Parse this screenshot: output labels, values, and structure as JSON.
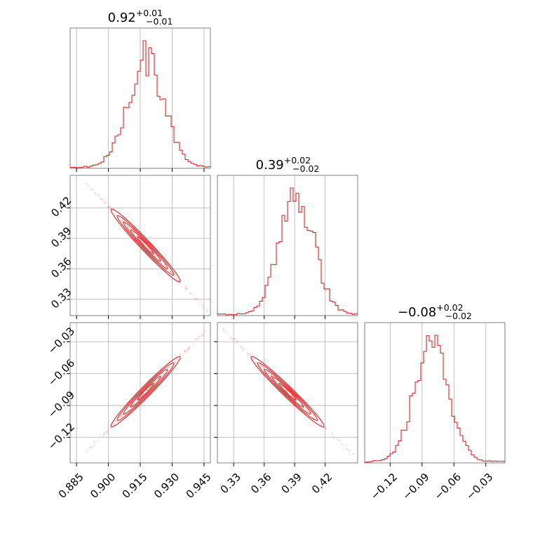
{
  "chart_data": {
    "type": "corner",
    "color": "#d62728",
    "grid": true,
    "parameters": [
      {
        "title_value": "0.92",
        "err_plus": "+0.01",
        "err_minus": "−0.01",
        "range": [
          0.882,
          0.948
        ],
        "ticks": [
          0.885,
          0.9,
          0.915,
          0.93,
          0.945
        ],
        "tick_labels": [
          "0.885",
          "0.900",
          "0.915",
          "0.930",
          "0.945"
        ],
        "hist_mean": 0.9175,
        "hist_sd": 0.0085
      },
      {
        "title_value": "0.39",
        "err_plus": "+0.02",
        "err_minus": "−0.02",
        "range": [
          0.314,
          0.452
        ],
        "ticks": [
          0.33,
          0.36,
          0.39,
          0.42
        ],
        "tick_labels": [
          "0.33",
          "0.36",
          "0.39",
          "0.42"
        ],
        "hist_mean": 0.392,
        "hist_sd": 0.017
      },
      {
        "title_value": "−0.08",
        "err_plus": "+0.02",
        "err_minus": "−0.02",
        "range": [
          -0.144,
          -0.012
        ],
        "ticks": [
          -0.12,
          -0.09,
          -0.06,
          -0.03
        ],
        "tick_labels": [
          "−0.12",
          "−0.09",
          "−0.06",
          "−0.03"
        ],
        "hist_mean": -0.081,
        "hist_sd": 0.016
      }
    ],
    "correlations": [
      {
        "row": 1,
        "col": 0,
        "x_range": [
          0.888,
          0.947
        ],
        "y_range": [
          0.448,
          0.318
        ]
      },
      {
        "row": 2,
        "col": 0,
        "x_range": [
          0.888,
          0.947
        ],
        "y_range": [
          -0.137,
          -0.017
        ]
      },
      {
        "row": 2,
        "col": 1,
        "x_range": [
          0.318,
          0.448
        ],
        "y_range": [
          -0.017,
          -0.137
        ]
      }
    ]
  }
}
